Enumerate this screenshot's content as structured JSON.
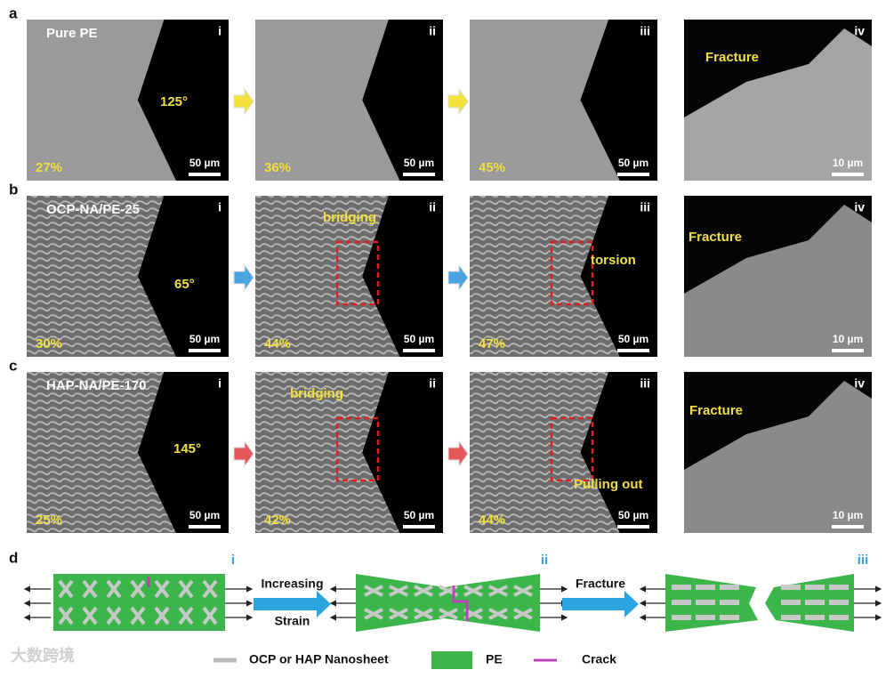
{
  "rows": [
    {
      "letter": "a",
      "sample": "Pure PE",
      "panels": [
        {
          "numeral": "i",
          "strain": "27%",
          "scale": "50 µm",
          "notes": [
            "125°"
          ]
        },
        {
          "numeral": "ii",
          "strain": "36%",
          "scale": "50 µm"
        },
        {
          "numeral": "iii",
          "strain": "45%",
          "scale": "50 µm"
        },
        {
          "numeral": "iv",
          "scale": "10 µm",
          "notes": [
            "Fracture"
          ]
        }
      ]
    },
    {
      "letter": "b",
      "sample": "OCP-NA/PE-25",
      "panels": [
        {
          "numeral": "i",
          "strain": "30%",
          "scale": "50 µm",
          "notes": [
            "65°"
          ]
        },
        {
          "numeral": "ii",
          "strain": "44%",
          "scale": "50 µm",
          "notes": [
            "bridging"
          ]
        },
        {
          "numeral": "iii",
          "strain": "47%",
          "scale": "50 µm",
          "notes": [
            "torsion"
          ]
        },
        {
          "numeral": "iv",
          "scale": "10 µm",
          "notes": [
            "Fracture"
          ]
        }
      ]
    },
    {
      "letter": "c",
      "sample": "HAP-NA/PE-170",
      "panels": [
        {
          "numeral": "i",
          "strain": "25%",
          "scale": "50 µm",
          "notes": [
            "145°"
          ]
        },
        {
          "numeral": "ii",
          "strain": "42%",
          "scale": "50 µm",
          "notes": [
            "bridging"
          ]
        },
        {
          "numeral": "iii",
          "strain": "44%",
          "scale": "50 µm",
          "notes": [
            "Pulling out"
          ]
        },
        {
          "numeral": "iv",
          "scale": "10 µm",
          "notes": [
            "Fracture"
          ]
        }
      ]
    }
  ],
  "schematic": {
    "letter": "d",
    "stages": [
      "i",
      "ii",
      "iii"
    ],
    "arrows": [
      {
        "top": "Increasing",
        "bottom": "Strain"
      },
      {
        "top": "Fracture"
      }
    ],
    "legend": [
      "OCP or HAP Nanosheet",
      "PE",
      "Crack"
    ]
  },
  "watermark": "大数跨境"
}
